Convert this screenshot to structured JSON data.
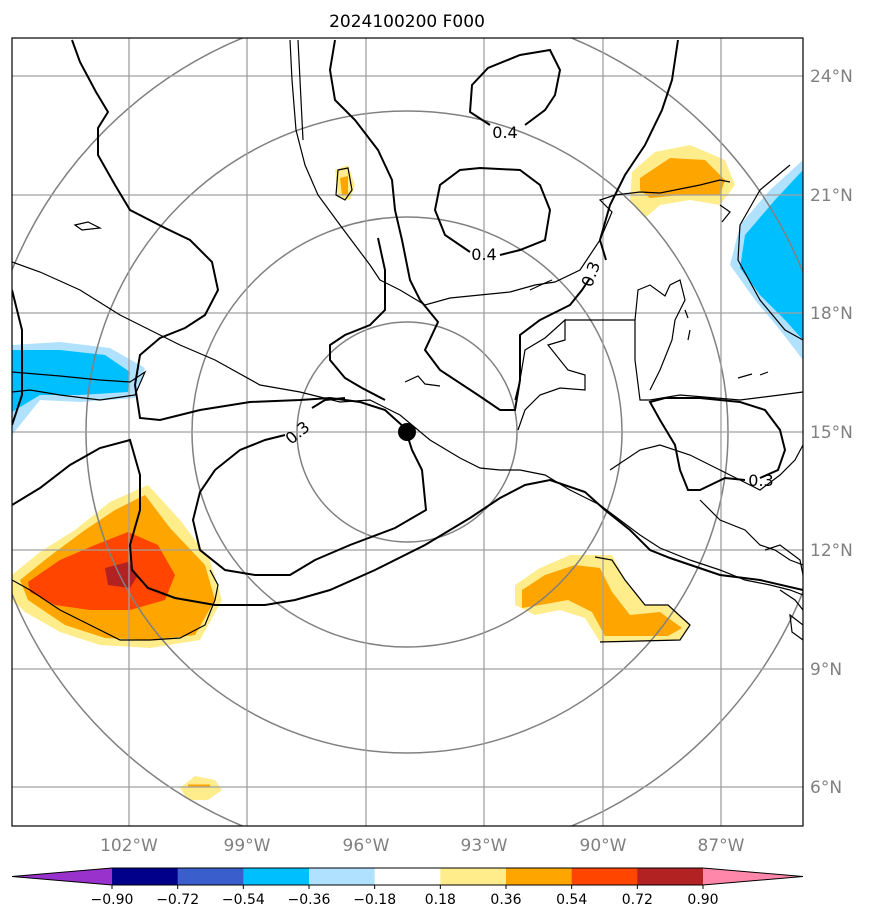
{
  "title": "2024100200 F000",
  "lat_labels": [
    "24°N",
    "21°N",
    "18°N",
    "15°N",
    "12°N",
    "9°N",
    "6°N"
  ],
  "lon_labels": [
    "102°W",
    "99°W",
    "96°W",
    "93°W",
    "90°W",
    "87°W"
  ],
  "contour_labels": [
    "0.4",
    "0.4",
    "0.3",
    "0.3",
    "0.3"
  ],
  "colorbar": {
    "ticks": [
      "−0.90",
      "−0.72",
      "−0.54",
      "−0.36",
      "−0.18",
      "0.18",
      "0.36",
      "0.54",
      "0.72",
      "0.90"
    ],
    "colors": [
      "#9932cc",
      "#00008b",
      "#3a5fcd",
      "#00bfff",
      "#b0e2ff",
      "#ffffff",
      "#ffec8b",
      "#ffa500",
      "#ff4500",
      "#b22222",
      "#ff88aa"
    ]
  },
  "colors": {
    "coast": "#000000",
    "grid": "#808080",
    "range_rings": "#808080",
    "center_marker": "#000000"
  }
}
